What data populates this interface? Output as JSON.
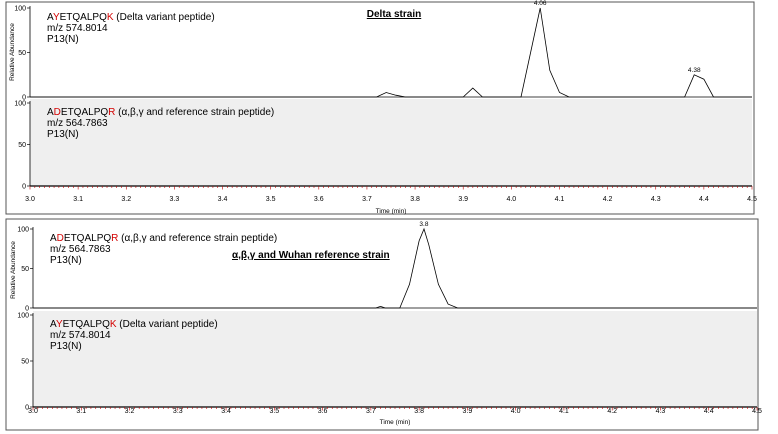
{
  "chart_data": [
    {
      "type": "line",
      "title": "Delta strain",
      "xlabel": "Time (min)",
      "ylabel": "Relative Abundance",
      "xlim": [
        3.0,
        4.5
      ],
      "ylim": [
        0,
        100
      ],
      "x_ticks": [
        "3.0",
        "3.1",
        "3.2",
        "3.3",
        "3.4",
        "3.5",
        "3.6",
        "3.7",
        "3.8",
        "3.9",
        "4.0",
        "4.1",
        "4.2",
        "4.3",
        "4.4",
        "4.5"
      ],
      "y_ticks": [
        "0",
        "50",
        "100"
      ],
      "grid": false,
      "panels": [
        {
          "label": {
            "prefix": "A",
            "red1": "Y",
            "mid": "ETQALPQ",
            "red2": "K",
            "suffix": " (Delta variant peptide)",
            "mz": "m/z 574.8014",
            "pos": "P13(N)"
          },
          "shaded": false,
          "peak_labels": [
            {
              "x": 4.06,
              "y": 100,
              "text": "4.06"
            },
            {
              "x": 4.38,
              "y": 25,
              "text": "4.38"
            }
          ],
          "x": [
            3.0,
            3.72,
            3.74,
            3.76,
            3.78,
            3.9,
            3.92,
            3.94,
            4.02,
            4.04,
            4.06,
            4.08,
            4.1,
            4.12,
            4.36,
            4.38,
            4.4,
            4.42,
            4.5
          ],
          "y": [
            0,
            0,
            5,
            2,
            0,
            0,
            10,
            0,
            0,
            50,
            100,
            30,
            5,
            0,
            0,
            25,
            20,
            0,
            0
          ]
        },
        {
          "label": {
            "prefix": "A",
            "red1": "D",
            "mid": "ETQALPQ",
            "red2": "R",
            "suffix": " (α,β,γ and reference strain peptide)",
            "mz": "m/z 564.7863",
            "pos": "P13(N)"
          },
          "shaded": true,
          "peak_labels": [],
          "x": [
            3.0,
            4.5
          ],
          "y": [
            0,
            0
          ]
        }
      ]
    },
    {
      "type": "line",
      "title": "α,β,γ and Wuhan reference strain",
      "xlabel": "Time (min)",
      "ylabel": "Relative Abundance",
      "xlim": [
        3.0,
        4.5
      ],
      "ylim": [
        0,
        100
      ],
      "x_ticks": [
        "3.0",
        "3.1",
        "3.2",
        "3.3",
        "3.4",
        "3.5",
        "3.6",
        "3.7",
        "3.8",
        "3.9",
        "4.0",
        "4.1",
        "4.2",
        "4.3",
        "4.4",
        "4.5"
      ],
      "y_ticks": [
        "0",
        "50",
        "100"
      ],
      "grid": false,
      "panels": [
        {
          "label": {
            "prefix": "A",
            "red1": "D",
            "mid": "ETQALPQ",
            "red2": "R",
            "suffix": " (α,β,γ and reference strain peptide)",
            "mz": "m/z 564.7863",
            "pos": "P13(N)"
          },
          "shaded": false,
          "peak_labels": [
            {
              "x": 3.81,
              "y": 100,
              "text": "3.8"
            }
          ],
          "x": [
            3.0,
            3.71,
            3.72,
            3.73,
            3.76,
            3.78,
            3.8,
            3.81,
            3.82,
            3.84,
            3.86,
            3.88,
            4.5
          ],
          "y": [
            0,
            0,
            2,
            0,
            0,
            30,
            85,
            100,
            80,
            30,
            5,
            0,
            0
          ]
        },
        {
          "label": {
            "prefix": "A",
            "red1": "Y",
            "mid": "ETQALPQ",
            "red2": "K",
            "suffix": " (Delta variant peptide)",
            "mz": "m/z 574.8014",
            "pos": "P13(N)"
          },
          "shaded": true,
          "peak_labels": [],
          "x": [
            3.0,
            4.5
          ],
          "y": [
            0,
            0
          ]
        }
      ]
    }
  ]
}
